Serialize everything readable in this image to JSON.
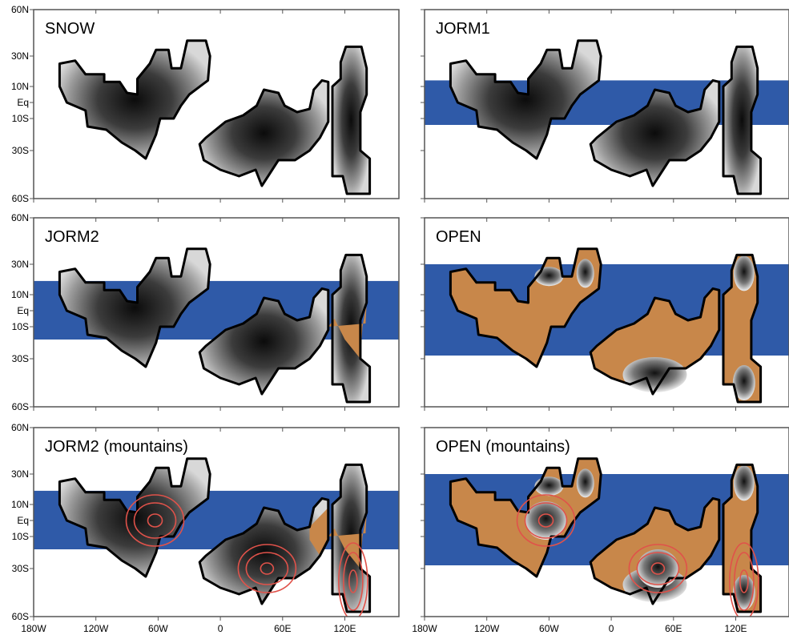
{
  "chart_data": {
    "type": "map",
    "panels": [
      {
        "title": "SNOW",
        "ocean": "none",
        "shading": "all-ice"
      },
      {
        "title": "JORM1",
        "ocean": "narrow-band",
        "shading": "all-ice"
      },
      {
        "title": "JORM2",
        "ocean": "band",
        "shading": "partial"
      },
      {
        "title": "OPEN",
        "ocean": "wide-band",
        "shading": "bare-land"
      },
      {
        "title": "JORM2 (mountains)",
        "ocean": "band",
        "shading": "partial",
        "mountains": true
      },
      {
        "title": "OPEN (mountains)",
        "ocean": "wide-band",
        "shading": "bare-land",
        "mountains": true
      }
    ],
    "y_ticks": [
      "60N",
      "30N",
      "10N",
      "Eq",
      "10S",
      "30S",
      "60S"
    ],
    "x_ticks": [
      "180W",
      "120W",
      "60W",
      "0",
      "60E",
      "120E"
    ],
    "colors": {
      "ocean": "#2f5aa8",
      "bare_land": "#c8874a",
      "contour": "#e0524a",
      "coast": "#000000"
    }
  }
}
